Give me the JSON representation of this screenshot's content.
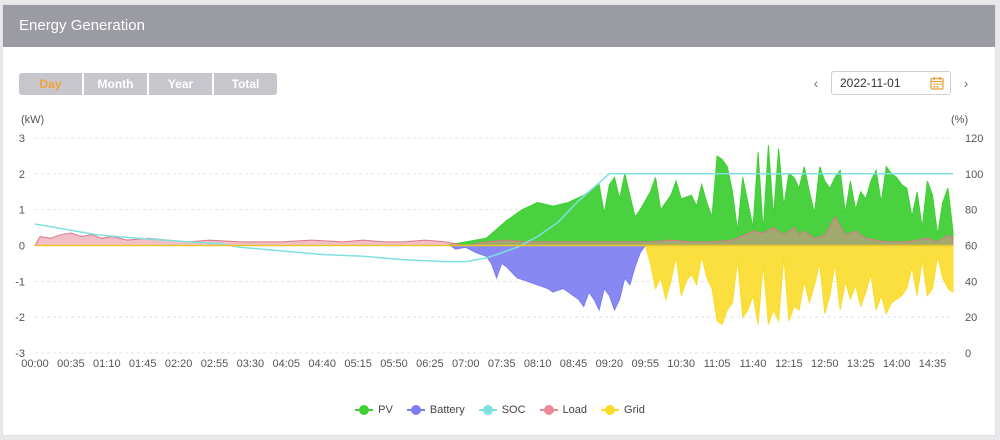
{
  "header": {
    "title": "Energy Generation"
  },
  "tabs": [
    {
      "label": "Day",
      "active": true
    },
    {
      "label": "Month",
      "active": false
    },
    {
      "label": "Year",
      "active": false
    },
    {
      "label": "Total",
      "active": false
    }
  ],
  "date_nav": {
    "prev": "‹",
    "next": "›",
    "date": "2022-11-01",
    "icon": "calendar-icon"
  },
  "colors": {
    "pv": "#3fcf35",
    "battery": "#7b7bf2",
    "soc": "#7fe0e0",
    "load": "#e88a97",
    "grid": "#f9dc29",
    "accent": "#f2a23a",
    "header_bg": "#9b9ba3"
  },
  "chart_data": {
    "type": "area",
    "ylabel_left": "(kW)",
    "ylabel_right": "(%)",
    "ylim_left": [
      -3,
      3
    ],
    "ylim_right": [
      0,
      120
    ],
    "yticks_left": [
      "-3",
      "-2",
      "-1",
      "0",
      "1",
      "2",
      "3"
    ],
    "yticks_right": [
      "0",
      "20",
      "40",
      "60",
      "80",
      "100",
      "120"
    ],
    "x_ticks": [
      "00:00",
      "00:35",
      "01:10",
      "01:45",
      "02:20",
      "02:55",
      "03:30",
      "04:05",
      "04:40",
      "05:15",
      "05:50",
      "06:25",
      "07:00",
      "07:35",
      "08:10",
      "08:45",
      "09:20",
      "09:55",
      "10:30",
      "11:05",
      "11:40",
      "12:15",
      "12:50",
      "13:25",
      "14:00",
      "14:35"
    ],
    "x_start_minute": 0,
    "x_end_minute": 895,
    "grid": true,
    "legend_position": "bottom-center",
    "series": [
      {
        "name": "PV",
        "color_key": "pv",
        "points": [
          [
            0,
            0
          ],
          [
            400,
            0
          ],
          [
            420,
            0.1
          ],
          [
            440,
            0.2
          ],
          [
            460,
            0.7
          ],
          [
            475,
            1.0
          ],
          [
            490,
            1.2
          ],
          [
            505,
            1.1
          ],
          [
            520,
            1.2
          ],
          [
            535,
            1.4
          ],
          [
            545,
            1.6
          ],
          [
            550,
            1.7
          ],
          [
            555,
            0.9
          ],
          [
            560,
            1.7
          ],
          [
            565,
            1.9
          ],
          [
            570,
            1.3
          ],
          [
            575,
            2.0
          ],
          [
            580,
            1.4
          ],
          [
            585,
            0.8
          ],
          [
            590,
            1.0
          ],
          [
            600,
            1.5
          ],
          [
            605,
            1.9
          ],
          [
            610,
            1.0
          ],
          [
            620,
            1.4
          ],
          [
            625,
            1.8
          ],
          [
            630,
            1.3
          ],
          [
            640,
            1.4
          ],
          [
            645,
            1.1
          ],
          [
            650,
            1.7
          ],
          [
            655,
            1.2
          ],
          [
            660,
            0.8
          ],
          [
            665,
            2.5
          ],
          [
            670,
            2.4
          ],
          [
            675,
            2.2
          ],
          [
            680,
            1.5
          ],
          [
            685,
            0.4
          ],
          [
            690,
            1.9
          ],
          [
            695,
            1.2
          ],
          [
            700,
            0.5
          ],
          [
            705,
            2.6
          ],
          [
            710,
            0.4
          ],
          [
            715,
            2.8
          ],
          [
            720,
            0.8
          ],
          [
            725,
            2.7
          ],
          [
            730,
            1.1
          ],
          [
            735,
            2.0
          ],
          [
            740,
            1.9
          ],
          [
            745,
            1.6
          ],
          [
            750,
            2.2
          ],
          [
            755,
            1.5
          ],
          [
            760,
            0.9
          ],
          [
            765,
            2.2
          ],
          [
            770,
            1.8
          ],
          [
            775,
            1.6
          ],
          [
            780,
            1.9
          ],
          [
            785,
            2.1
          ],
          [
            790,
            0.9
          ],
          [
            795,
            1.8
          ],
          [
            800,
            1.0
          ],
          [
            805,
            1.5
          ],
          [
            810,
            1.3
          ],
          [
            815,
            1.8
          ],
          [
            820,
            2.1
          ],
          [
            825,
            1.2
          ],
          [
            830,
            2.2
          ],
          [
            835,
            2.0
          ],
          [
            840,
            1.9
          ],
          [
            845,
            1.7
          ],
          [
            850,
            1.6
          ],
          [
            855,
            0.8
          ],
          [
            860,
            1.5
          ],
          [
            865,
            0.5
          ],
          [
            870,
            1.8
          ],
          [
            875,
            1.4
          ],
          [
            880,
            0.3
          ],
          [
            885,
            1.2
          ],
          [
            890,
            1.6
          ],
          [
            895,
            0.4
          ],
          [
            895,
            0
          ]
        ]
      },
      {
        "name": "Battery",
        "color_key": "battery",
        "points": [
          [
            0,
            0
          ],
          [
            405,
            0
          ],
          [
            410,
            -0.1
          ],
          [
            420,
            -0.05
          ],
          [
            430,
            -0.2
          ],
          [
            440,
            -0.3
          ],
          [
            445,
            -0.5
          ],
          [
            450,
            -0.9
          ],
          [
            455,
            -0.5
          ],
          [
            460,
            -0.6
          ],
          [
            470,
            -0.9
          ],
          [
            480,
            -1.0
          ],
          [
            490,
            -1.1
          ],
          [
            500,
            -1.2
          ],
          [
            505,
            -1.3
          ],
          [
            515,
            -1.2
          ],
          [
            520,
            -1.3
          ],
          [
            530,
            -1.5
          ],
          [
            535,
            -1.7
          ],
          [
            540,
            -1.3
          ],
          [
            545,
            -1.5
          ],
          [
            550,
            -1.8
          ],
          [
            555,
            -1.2
          ],
          [
            560,
            -1.4
          ],
          [
            565,
            -1.8
          ],
          [
            570,
            -1.5
          ],
          [
            575,
            -0.9
          ],
          [
            580,
            -1.1
          ],
          [
            585,
            -0.6
          ],
          [
            590,
            -0.2
          ],
          [
            595,
            0
          ],
          [
            895,
            0
          ]
        ]
      },
      {
        "name": "SOC",
        "color_key": "soc",
        "points": [
          [
            0,
            72
          ],
          [
            30,
            69
          ],
          [
            60,
            66
          ],
          [
            100,
            64
          ],
          [
            150,
            62
          ],
          [
            180,
            61
          ],
          [
            200,
            59
          ],
          [
            240,
            57
          ],
          [
            280,
            55
          ],
          [
            320,
            54
          ],
          [
            360,
            52
          ],
          [
            400,
            51
          ],
          [
            420,
            51
          ],
          [
            440,
            53
          ],
          [
            450,
            55
          ],
          [
            470,
            59
          ],
          [
            490,
            65
          ],
          [
            510,
            73
          ],
          [
            530,
            85
          ],
          [
            550,
            95
          ],
          [
            560,
            100
          ],
          [
            895,
            100
          ]
        ]
      },
      {
        "name": "Load",
        "color_key": "load",
        "points": [
          [
            0,
            0
          ],
          [
            5,
            0.25
          ],
          [
            15,
            0.2
          ],
          [
            25,
            0.3
          ],
          [
            35,
            0.35
          ],
          [
            45,
            0.25
          ],
          [
            55,
            0.3
          ],
          [
            65,
            0.2
          ],
          [
            75,
            0.25
          ],
          [
            90,
            0.15
          ],
          [
            110,
            0.2
          ],
          [
            130,
            0.15
          ],
          [
            150,
            0.1
          ],
          [
            170,
            0.15
          ],
          [
            200,
            0.1
          ],
          [
            240,
            0.1
          ],
          [
            270,
            0.15
          ],
          [
            300,
            0.1
          ],
          [
            320,
            0.15
          ],
          [
            340,
            0.1
          ],
          [
            360,
            0.1
          ],
          [
            380,
            0.15
          ],
          [
            400,
            0.1
          ],
          [
            420,
            0.0
          ],
          [
            440,
            0.1
          ],
          [
            460,
            0.15
          ],
          [
            480,
            0.1
          ],
          [
            500,
            0.1
          ],
          [
            520,
            0.1
          ],
          [
            540,
            0.1
          ],
          [
            560,
            0.1
          ],
          [
            580,
            0.1
          ],
          [
            600,
            0.1
          ],
          [
            620,
            0.15
          ],
          [
            640,
            0.1
          ],
          [
            660,
            0.1
          ],
          [
            680,
            0.15
          ],
          [
            700,
            0.4
          ],
          [
            710,
            0.35
          ],
          [
            720,
            0.5
          ],
          [
            730,
            0.3
          ],
          [
            740,
            0.5
          ],
          [
            745,
            0.3
          ],
          [
            750,
            0.4
          ],
          [
            760,
            0.2
          ],
          [
            770,
            0.3
          ],
          [
            780,
            0.8
          ],
          [
            790,
            0.3
          ],
          [
            800,
            0.4
          ],
          [
            810,
            0.2
          ],
          [
            830,
            0.1
          ],
          [
            850,
            0.1
          ],
          [
            870,
            0.2
          ],
          [
            880,
            0.1
          ],
          [
            890,
            0.3
          ],
          [
            895,
            0.2
          ],
          [
            895,
            0
          ]
        ]
      },
      {
        "name": "Grid",
        "color_key": "grid",
        "points": [
          [
            0,
            0
          ],
          [
            595,
            0
          ],
          [
            600,
            -0.5
          ],
          [
            605,
            -1.2
          ],
          [
            610,
            -0.9
          ],
          [
            615,
            -1.5
          ],
          [
            620,
            -1.0
          ],
          [
            625,
            -0.3
          ],
          [
            630,
            -1.4
          ],
          [
            635,
            -1.0
          ],
          [
            640,
            -0.8
          ],
          [
            645,
            -1.1
          ],
          [
            650,
            -0.3
          ],
          [
            655,
            -0.9
          ],
          [
            660,
            -1.2
          ],
          [
            665,
            -2.1
          ],
          [
            670,
            -2.2
          ],
          [
            675,
            -1.8
          ],
          [
            680,
            -1.6
          ],
          [
            685,
            -0.4
          ],
          [
            690,
            -2.0
          ],
          [
            695,
            -1.8
          ],
          [
            700,
            -1.4
          ],
          [
            705,
            -2.2
          ],
          [
            710,
            -0.5
          ],
          [
            715,
            -2.2
          ],
          [
            720,
            -1.8
          ],
          [
            725,
            -2.1
          ],
          [
            730,
            -0.3
          ],
          [
            735,
            -2.1
          ],
          [
            740,
            -1.7
          ],
          [
            745,
            -1.8
          ],
          [
            750,
            -1.0
          ],
          [
            755,
            -1.6
          ],
          [
            760,
            -1.1
          ],
          [
            765,
            -0.5
          ],
          [
            770,
            -1.9
          ],
          [
            775,
            -1.4
          ],
          [
            780,
            -0.5
          ],
          [
            785,
            -1.8
          ],
          [
            790,
            -1.0
          ],
          [
            795,
            -1.5
          ],
          [
            800,
            -1.1
          ],
          [
            805,
            -1.7
          ],
          [
            810,
            -1.3
          ],
          [
            815,
            -0.8
          ],
          [
            820,
            -1.8
          ],
          [
            825,
            -1.4
          ],
          [
            830,
            -1.9
          ],
          [
            835,
            -1.6
          ],
          [
            840,
            -1.5
          ],
          [
            845,
            -1.4
          ],
          [
            850,
            -1.2
          ],
          [
            855,
            -0.6
          ],
          [
            860,
            -1.4
          ],
          [
            865,
            -0.4
          ],
          [
            870,
            -1.4
          ],
          [
            875,
            -1.2
          ],
          [
            880,
            -0.3
          ],
          [
            885,
            -0.9
          ],
          [
            890,
            -1.2
          ],
          [
            895,
            -1.3
          ],
          [
            895,
            0
          ]
        ]
      }
    ]
  },
  "legend": [
    {
      "name": "PV",
      "color_key": "pv"
    },
    {
      "name": "Battery",
      "color_key": "battery"
    },
    {
      "name": "SOC",
      "color_key": "soc"
    },
    {
      "name": "Load",
      "color_key": "load"
    },
    {
      "name": "Grid",
      "color_key": "grid"
    }
  ]
}
